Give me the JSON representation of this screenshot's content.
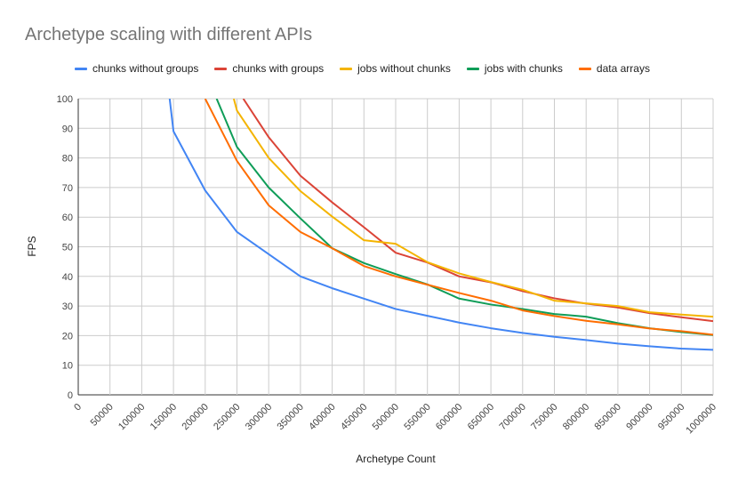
{
  "chart_data": {
    "type": "line",
    "title": "Archetype scaling with different APIs",
    "xlabel": "Archetype Count",
    "ylabel": "FPS",
    "xlim": [
      0,
      1000000
    ],
    "ylim": [
      0,
      100
    ],
    "xticks": [
      0,
      50000,
      100000,
      150000,
      200000,
      250000,
      300000,
      350000,
      400000,
      450000,
      500000,
      550000,
      600000,
      650000,
      700000,
      750000,
      800000,
      850000,
      900000,
      950000,
      1000000
    ],
    "yticks": [
      0,
      10,
      20,
      30,
      40,
      50,
      60,
      70,
      80,
      90,
      100
    ],
    "grid": true,
    "legend_position": "top",
    "x": [
      150000,
      200000,
      250000,
      300000,
      350000,
      400000,
      450000,
      500000,
      550000,
      600000,
      650000,
      700000,
      750000,
      800000,
      850000,
      900000,
      950000,
      1000000
    ],
    "series": [
      {
        "name": "chunks without groups",
        "color": "#4285f4",
        "values": [
          89,
          69,
          55,
          47.5,
          40,
          36,
          32.5,
          29,
          26.7,
          24.4,
          22.5,
          20.9,
          19.6,
          18.5,
          17.3,
          16.4,
          15.6,
          15.2
        ],
        "lead_in": [
          [
            144000,
            100
          ]
        ]
      },
      {
        "name": "chunks with groups",
        "color": "#db4437",
        "values": [
          null,
          null,
          null,
          87,
          74,
          65,
          56.6,
          48,
          44.7,
          40,
          38,
          35,
          32.6,
          30.8,
          29.5,
          27.6,
          26.2,
          24.9
        ],
        "lead_in": [
          [
            260000,
            100
          ]
        ]
      },
      {
        "name": "jobs without chunks",
        "color": "#f4b400",
        "values": [
          null,
          null,
          96,
          80,
          68.8,
          60.2,
          52.2,
          51,
          44.8,
          41,
          38.1,
          35.5,
          31.8,
          30.9,
          30,
          27.9,
          27.1,
          26.4
        ],
        "lead_in": [
          [
            245000,
            100
          ]
        ]
      },
      {
        "name": "jobs with chunks",
        "color": "#0f9d58",
        "values": [
          null,
          null,
          83.7,
          70,
          59.6,
          49.5,
          44.5,
          40.8,
          37.3,
          32.5,
          30.5,
          29,
          27.3,
          26.4,
          24.2,
          22.5,
          21.2,
          20.2
        ],
        "lead_in": [
          [
            218000,
            100
          ]
        ]
      },
      {
        "name": "data arrays",
        "color": "#ff6d00",
        "values": [
          null,
          100,
          79,
          64,
          55,
          49.5,
          43.5,
          40,
          37.2,
          34.4,
          31.8,
          28.5,
          26.6,
          25,
          23.8,
          22.4,
          21.5,
          20.3
        ],
        "lead_in": []
      }
    ]
  }
}
